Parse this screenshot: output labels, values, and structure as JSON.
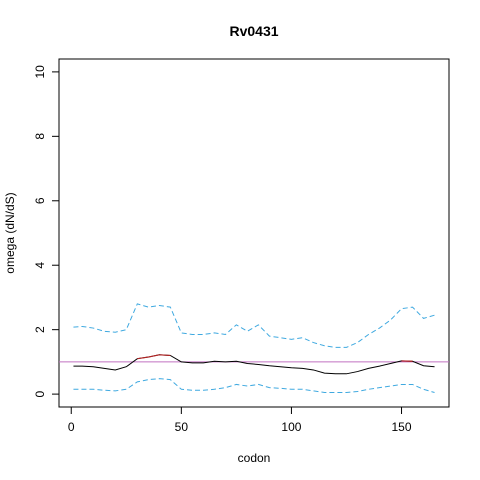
{
  "chart_data": {
    "type": "line",
    "title": "Rv0431",
    "x_label": "codon",
    "y_label": "omega (dN/dS)",
    "x": [
      1,
      5,
      10,
      15,
      20,
      25,
      30,
      35,
      40,
      45,
      50,
      55,
      60,
      65,
      70,
      75,
      80,
      85,
      90,
      95,
      100,
      105,
      110,
      115,
      120,
      125,
      130,
      135,
      140,
      145,
      150,
      155,
      160,
      165
    ],
    "series": [
      {
        "color": "#000000",
        "highlight_color": "#b22222",
        "dash": "solid",
        "values": [
          0.87,
          0.87,
          0.85,
          0.8,
          0.75,
          0.85,
          1.1,
          1.15,
          1.22,
          1.2,
          1.0,
          0.97,
          0.97,
          1.02,
          1.0,
          1.02,
          0.95,
          0.92,
          0.88,
          0.85,
          0.82,
          0.8,
          0.75,
          0.65,
          0.63,
          0.63,
          0.7,
          0.8,
          0.87,
          0.95,
          1.03,
          1.02,
          0.88,
          0.85
        ]
      },
      {
        "color": "#3fa9e0",
        "dash": "dashed",
        "values": [
          2.08,
          2.1,
          2.05,
          1.95,
          1.92,
          2.0,
          2.8,
          2.7,
          2.75,
          2.7,
          1.9,
          1.85,
          1.85,
          1.9,
          1.85,
          2.15,
          1.95,
          2.15,
          1.8,
          1.75,
          1.7,
          1.75,
          1.6,
          1.5,
          1.45,
          1.45,
          1.6,
          1.85,
          2.05,
          2.3,
          2.65,
          2.7,
          2.35,
          2.45
        ]
      },
      {
        "color": "#3fa9e0",
        "dash": "dashed",
        "values": [
          0.15,
          0.15,
          0.15,
          0.12,
          0.1,
          0.15,
          0.38,
          0.45,
          0.48,
          0.45,
          0.15,
          0.12,
          0.12,
          0.15,
          0.2,
          0.3,
          0.25,
          0.3,
          0.2,
          0.18,
          0.15,
          0.15,
          0.1,
          0.05,
          0.05,
          0.05,
          0.08,
          0.15,
          0.2,
          0.25,
          0.3,
          0.3,
          0.15,
          0.05
        ]
      }
    ],
    "reference_line": {
      "value": 1,
      "color": "#c070c0"
    },
    "xlim": [
      -5.56,
      171.56
    ],
    "ylim": [
      -0.4,
      10.4
    ],
    "xticks": [
      0,
      50,
      100,
      150
    ],
    "yticks": [
      0,
      2,
      4,
      6,
      8,
      10
    ]
  }
}
